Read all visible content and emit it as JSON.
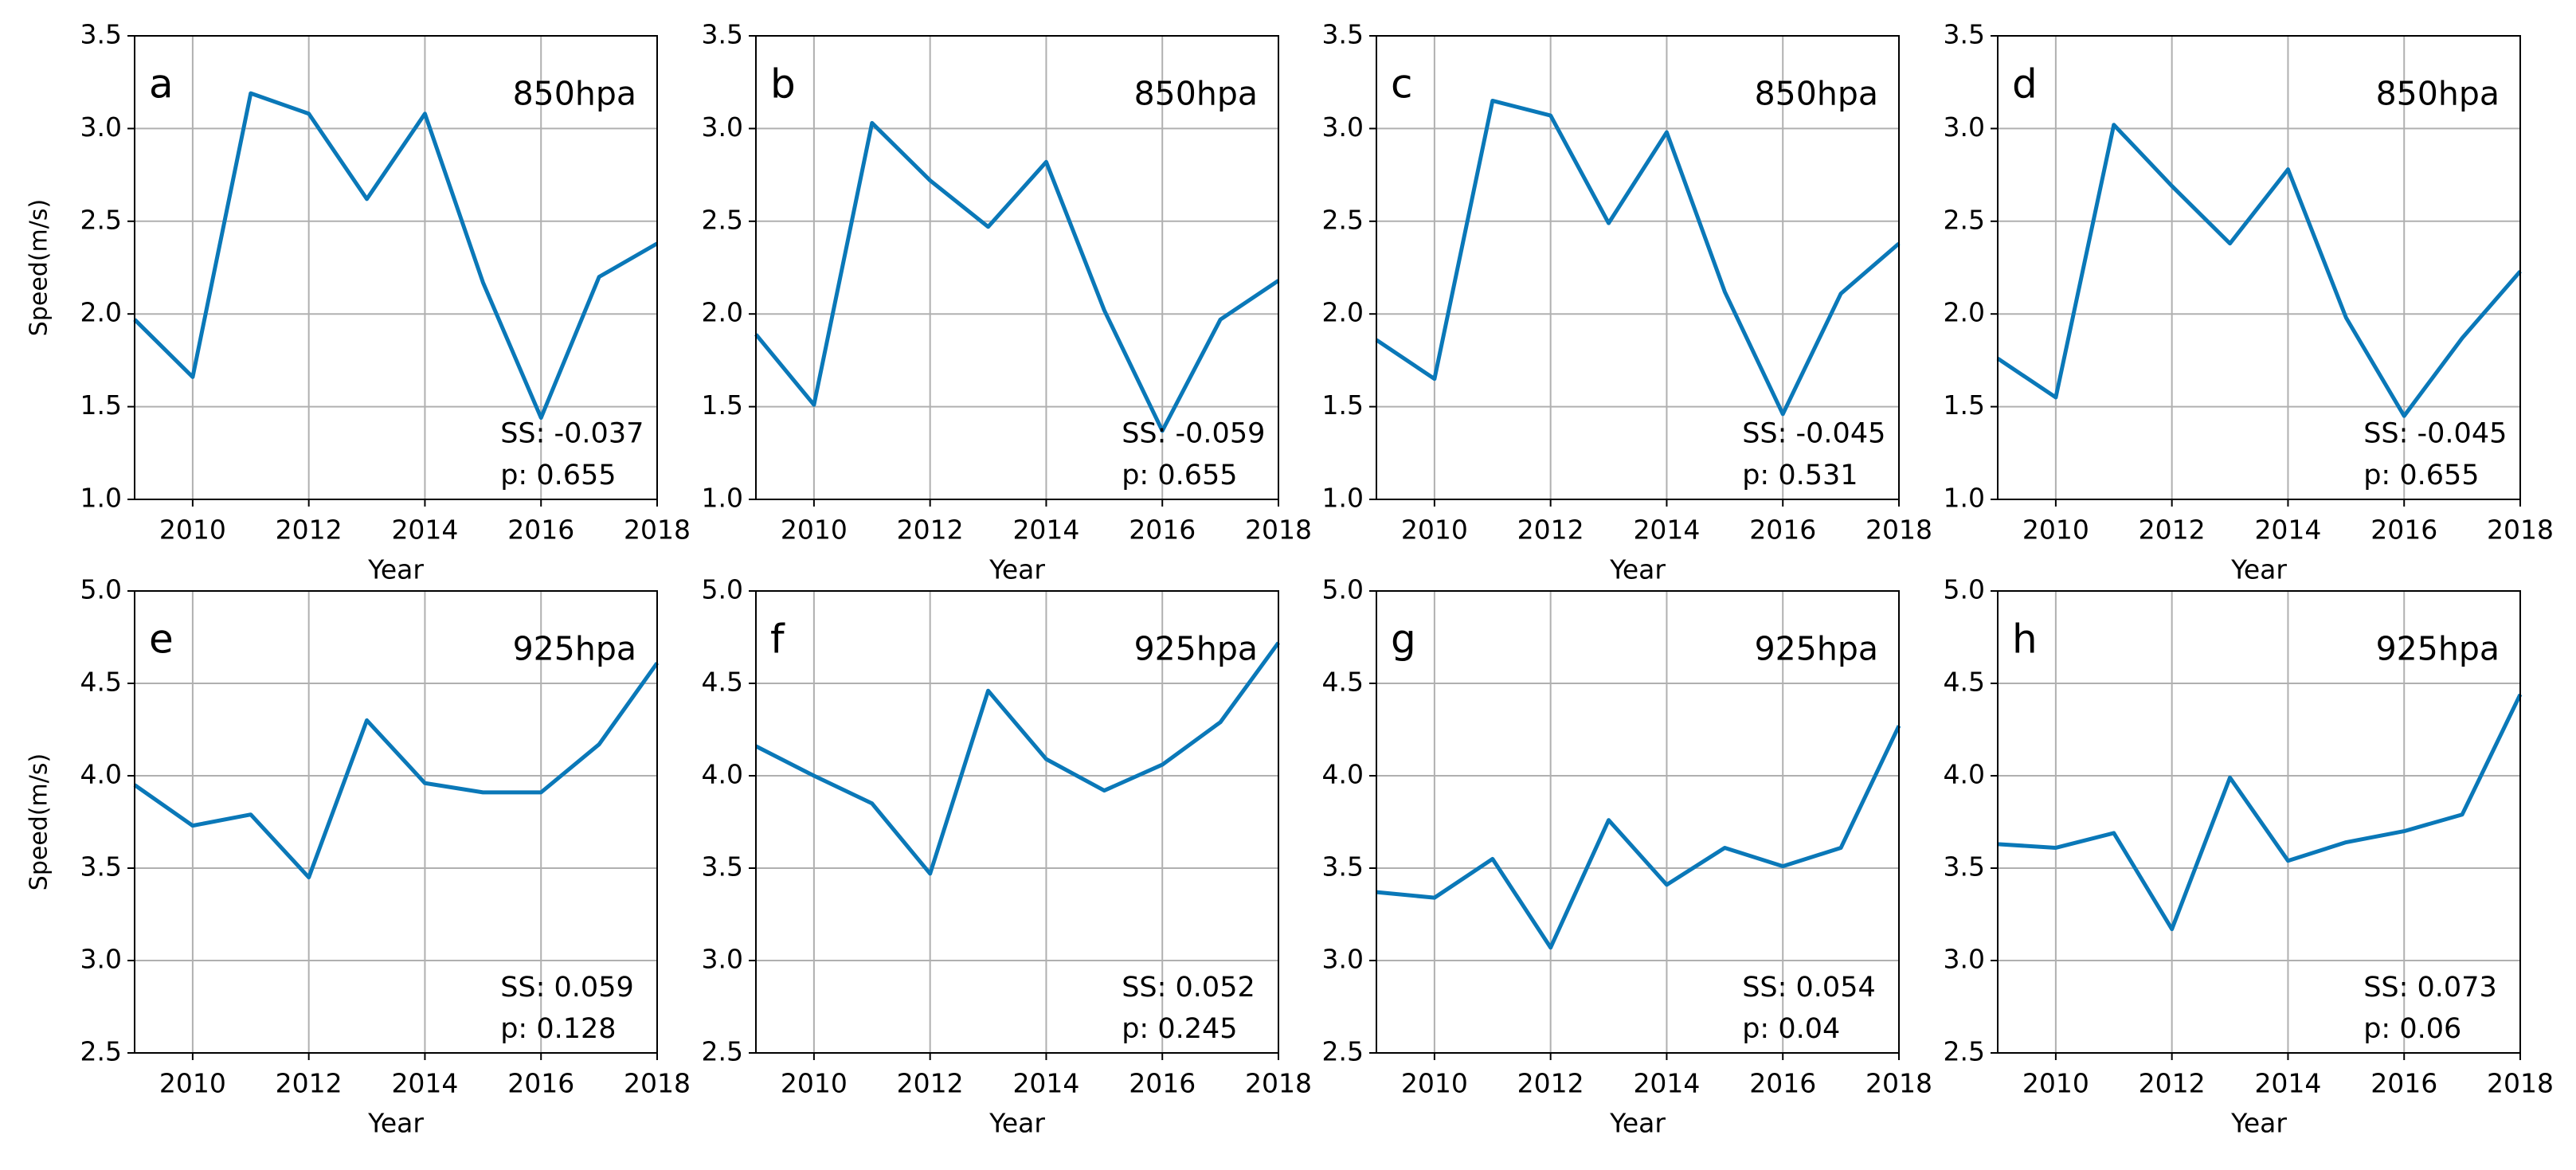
{
  "chart_data": [
    {
      "type": "line",
      "panel_label": "a",
      "level": "850hpa",
      "ylabel": "Speed(m/s)",
      "xlabel": "Year",
      "x": [
        2009,
        2010,
        2011,
        2012,
        2013,
        2014,
        2015,
        2016,
        2017,
        2018
      ],
      "values": [
        1.97,
        1.66,
        3.19,
        3.08,
        2.62,
        3.08,
        2.17,
        1.44,
        2.2,
        2.38
      ],
      "color": "#0a78b8",
      "xlim": [
        2009,
        2018
      ],
      "xticks": [
        2010,
        2012,
        2014,
        2016,
        2018
      ],
      "ylim": [
        1,
        3.5
      ],
      "yticks": [
        {
          "value": 1,
          "label": "1.0"
        },
        1.5,
        {
          "value": 2,
          "label": "2.0"
        },
        2.5,
        {
          "value": 3,
          "label": "3.0"
        },
        3.5
      ],
      "grid": true,
      "annotations": [
        "SS: -0.037",
        "p: 0.655"
      ]
    },
    {
      "type": "line",
      "panel_label": "b",
      "level": "850hpa",
      "xlabel": "Year",
      "x": [
        2009,
        2010,
        2011,
        2012,
        2013,
        2014,
        2015,
        2016,
        2017,
        2018
      ],
      "values": [
        1.89,
        1.51,
        3.03,
        2.72,
        2.47,
        2.82,
        2.02,
        1.37,
        1.97,
        2.18
      ],
      "color": "#0a78b8",
      "xlim": [
        2009,
        2018
      ],
      "xticks": [
        2010,
        2012,
        2014,
        2016,
        2018
      ],
      "ylim": [
        1,
        3.5
      ],
      "yticks": [
        {
          "value": 1,
          "label": "1.0"
        },
        1.5,
        {
          "value": 2,
          "label": "2.0"
        },
        2.5,
        {
          "value": 3,
          "label": "3.0"
        },
        3.5
      ],
      "grid": true,
      "annotations": [
        "SS: -0.059",
        "p: 0.655"
      ]
    },
    {
      "type": "line",
      "panel_label": "c",
      "level": "850hpa",
      "xlabel": "Year",
      "x": [
        2009,
        2010,
        2011,
        2012,
        2013,
        2014,
        2015,
        2016,
        2017,
        2018
      ],
      "values": [
        1.86,
        1.65,
        3.15,
        3.07,
        2.49,
        2.98,
        2.12,
        1.46,
        2.11,
        2.38
      ],
      "color": "#0a78b8",
      "xlim": [
        2009,
        2018
      ],
      "xticks": [
        2010,
        2012,
        2014,
        2016,
        2018
      ],
      "ylim": [
        1,
        3.5
      ],
      "yticks": [
        {
          "value": 1,
          "label": "1.0"
        },
        1.5,
        {
          "value": 2,
          "label": "2.0"
        },
        2.5,
        {
          "value": 3,
          "label": "3.0"
        },
        3.5
      ],
      "grid": true,
      "annotations": [
        "SS: -0.045",
        "p: 0.531"
      ]
    },
    {
      "type": "line",
      "panel_label": "d",
      "level": "850hpa",
      "xlabel": "Year",
      "x": [
        2009,
        2010,
        2011,
        2012,
        2013,
        2014,
        2015,
        2016,
        2017,
        2018
      ],
      "values": [
        1.76,
        1.55,
        3.02,
        2.69,
        2.38,
        2.78,
        1.98,
        1.45,
        1.87,
        2.23
      ],
      "color": "#0a78b8",
      "xlim": [
        2009,
        2018
      ],
      "xticks": [
        2010,
        2012,
        2014,
        2016,
        2018
      ],
      "ylim": [
        1,
        3.5
      ],
      "yticks": [
        {
          "value": 1,
          "label": "1.0"
        },
        1.5,
        {
          "value": 2,
          "label": "2.0"
        },
        2.5,
        {
          "value": 3,
          "label": "3.0"
        },
        3.5
      ],
      "grid": true,
      "annotations": [
        "SS: -0.045",
        "p: 0.655"
      ]
    },
    {
      "type": "line",
      "panel_label": "e",
      "level": "925hpa",
      "ylabel": "Speed(m/s)",
      "xlabel": "Year",
      "x": [
        2009,
        2010,
        2011,
        2012,
        2013,
        2014,
        2015,
        2016,
        2017,
        2018
      ],
      "values": [
        3.95,
        3.73,
        3.79,
        3.45,
        4.3,
        3.96,
        3.91,
        3.91,
        4.17,
        4.61
      ],
      "color": "#0a78b8",
      "xlim": [
        2009,
        2018
      ],
      "xticks": [
        2010,
        2012,
        2014,
        2016,
        2018
      ],
      "ylim": [
        2.5,
        5
      ],
      "yticks": [
        2.5,
        {
          "value": 3,
          "label": "3.0"
        },
        3.5,
        {
          "value": 4,
          "label": "4.0"
        },
        4.5,
        {
          "value": 5,
          "label": "5.0"
        }
      ],
      "grid": true,
      "annotations": [
        "SS: 0.059",
        "p: 0.128"
      ]
    },
    {
      "type": "line",
      "panel_label": "f",
      "level": "925hpa",
      "xlabel": "Year",
      "x": [
        2009,
        2010,
        2011,
        2012,
        2013,
        2014,
        2015,
        2016,
        2017,
        2018
      ],
      "values": [
        4.16,
        4.0,
        3.85,
        3.47,
        4.46,
        4.09,
        3.92,
        4.06,
        4.29,
        4.72
      ],
      "color": "#0a78b8",
      "xlim": [
        2009,
        2018
      ],
      "xticks": [
        2010,
        2012,
        2014,
        2016,
        2018
      ],
      "ylim": [
        2.5,
        5
      ],
      "yticks": [
        2.5,
        {
          "value": 3,
          "label": "3.0"
        },
        3.5,
        {
          "value": 4,
          "label": "4.0"
        },
        4.5,
        {
          "value": 5,
          "label": "5.0"
        }
      ],
      "grid": true,
      "annotations": [
        "SS: 0.052",
        "p: 0.245"
      ]
    },
    {
      "type": "line",
      "panel_label": "g",
      "level": "925hpa",
      "xlabel": "Year",
      "x": [
        2009,
        2010,
        2011,
        2012,
        2013,
        2014,
        2015,
        2016,
        2017,
        2018
      ],
      "values": [
        3.37,
        3.34,
        3.55,
        3.07,
        3.76,
        3.41,
        3.61,
        3.51,
        3.61,
        4.27
      ],
      "color": "#0a78b8",
      "xlim": [
        2009,
        2018
      ],
      "xticks": [
        2010,
        2012,
        2014,
        2016,
        2018
      ],
      "ylim": [
        2.5,
        5
      ],
      "yticks": [
        2.5,
        {
          "value": 3,
          "label": "3.0"
        },
        3.5,
        {
          "value": 4,
          "label": "4.0"
        },
        4.5,
        {
          "value": 5,
          "label": "5.0"
        }
      ],
      "grid": true,
      "annotations": [
        "SS: 0.054",
        "p: 0.04"
      ]
    },
    {
      "type": "line",
      "panel_label": "h",
      "level": "925hpa",
      "xlabel": "Year",
      "x": [
        2009,
        2010,
        2011,
        2012,
        2013,
        2014,
        2015,
        2016,
        2017,
        2018
      ],
      "values": [
        3.63,
        3.61,
        3.69,
        3.17,
        3.99,
        3.54,
        3.64,
        3.7,
        3.79,
        4.44
      ],
      "color": "#0a78b8",
      "xlim": [
        2009,
        2018
      ],
      "xticks": [
        2010,
        2012,
        2014,
        2016,
        2018
      ],
      "ylim": [
        2.5,
        5
      ],
      "yticks": [
        2.5,
        {
          "value": 3,
          "label": "3.0"
        },
        3.5,
        {
          "value": 4,
          "label": "4.0"
        },
        4.5,
        {
          "value": 5,
          "label": "5.0"
        }
      ],
      "grid": true,
      "annotations": [
        "SS: 0.073",
        "p: 0.06"
      ]
    }
  ]
}
